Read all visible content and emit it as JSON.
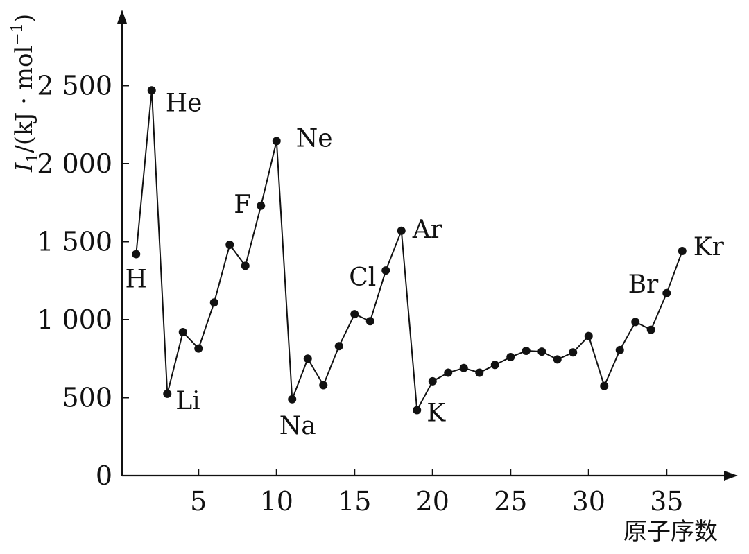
{
  "chart_data": {
    "type": "line",
    "xlabel": "原子序数",
    "ylabel": {
      "symbol": "I",
      "subscript": "1",
      "rest": "/(kJ · mol",
      "exponent": "−1",
      "close": ")"
    },
    "xlim": [
      0.1,
      38.5
    ],
    "ylim": [
      0,
      2800
    ],
    "xticks": [
      5,
      10,
      15,
      20,
      25,
      30,
      35
    ],
    "xtick_labels": [
      "5",
      "10",
      "15",
      "20",
      "25",
      "30",
      "35"
    ],
    "yticks": [
      0,
      500,
      1000,
      1500,
      2000,
      2500
    ],
    "ytick_labels": [
      "0",
      "500",
      "1 000",
      "1 500",
      "2 000",
      "2 500"
    ],
    "series": [
      {
        "x": [
          1,
          2,
          3,
          4,
          5,
          6,
          7,
          8,
          9,
          10,
          11,
          12,
          13,
          14,
          15,
          16,
          17,
          18,
          19,
          20,
          21,
          22,
          23,
          24,
          25,
          26,
          27,
          28,
          29,
          30,
          31,
          32,
          33,
          34,
          35,
          36
        ],
        "values": [
          1420,
          2470,
          525,
          920,
          815,
          1110,
          1480,
          1345,
          1730,
          2145,
          490,
          750,
          580,
          830,
          1035,
          990,
          1315,
          1570,
          420,
          605,
          660,
          690,
          660,
          710,
          760,
          800,
          795,
          745,
          790,
          895,
          575,
          805,
          985,
          935,
          1170,
          1440
        ]
      }
    ],
    "point_labels": [
      {
        "x": 1,
        "text": "H"
      },
      {
        "x": 2,
        "text": "He"
      },
      {
        "x": 3,
        "text": "Li"
      },
      {
        "x": 9,
        "text": "F"
      },
      {
        "x": 10,
        "text": "Ne"
      },
      {
        "x": 11,
        "text": "Na"
      },
      {
        "x": 17,
        "text": "Cl"
      },
      {
        "x": 18,
        "text": "Ar"
      },
      {
        "x": 19,
        "text": "K"
      },
      {
        "x": 35,
        "text": "Br"
      },
      {
        "x": 36,
        "text": "Kr"
      }
    ],
    "grid": false,
    "legend": "none"
  }
}
